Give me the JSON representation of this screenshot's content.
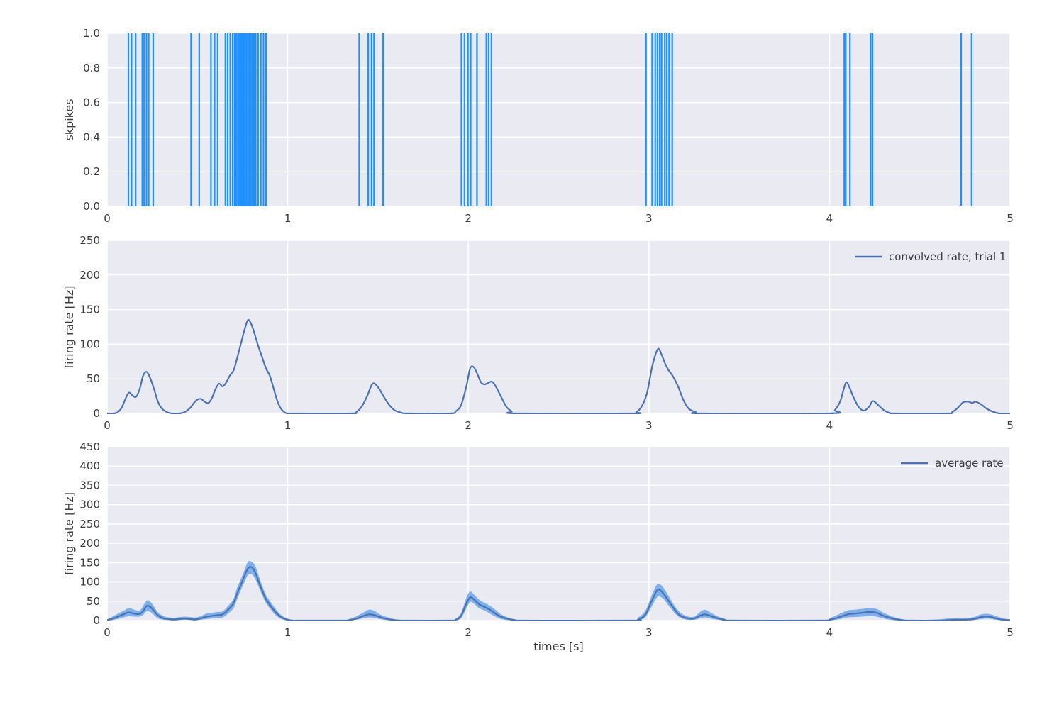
{
  "figure": {
    "background": "#ffffff",
    "axes_background": "#eaeaf2",
    "grid_color": "#ffffff",
    "text_color": "#3b3b3b",
    "xlabel": "times [s]"
  },
  "chart_data": [
    {
      "type": "eventplot",
      "name": "spike-raster",
      "ylabel": "skpikes",
      "xlim": [
        0,
        5
      ],
      "ylim": [
        0,
        1
      ],
      "grid": true,
      "xtick_values": [
        0,
        1,
        2,
        3,
        4,
        5
      ],
      "xtick_labels": [
        "0",
        "1",
        "2",
        "3",
        "4",
        "5"
      ],
      "ytick_values": [
        0,
        0.2,
        0.4,
        0.6,
        0.8,
        1.0
      ],
      "ytick_labels": [
        "0.0",
        "0.2",
        "0.4",
        "0.6",
        "0.8",
        "1.0"
      ],
      "spike_color": "#1e90ff",
      "spike_times": [
        0.118,
        0.135,
        0.158,
        0.195,
        0.205,
        0.218,
        0.23,
        0.255,
        0.465,
        0.51,
        0.575,
        0.595,
        0.612,
        0.655,
        0.668,
        0.682,
        0.695,
        0.706,
        0.715,
        0.724,
        0.732,
        0.74,
        0.748,
        0.756,
        0.763,
        0.771,
        0.779,
        0.787,
        0.795,
        0.804,
        0.813,
        0.823,
        0.836,
        0.851,
        0.866,
        0.88,
        1.396,
        1.446,
        1.464,
        1.478,
        1.528,
        1.962,
        1.979,
        1.998,
        2.013,
        2.048,
        2.1,
        2.113,
        2.128,
        2.984,
        3.018,
        3.035,
        3.048,
        3.06,
        3.07,
        3.088,
        3.099,
        3.112,
        3.129,
        4.082,
        4.09,
        4.113,
        4.228,
        4.238,
        4.729,
        4.787
      ]
    },
    {
      "type": "line",
      "name": "convolved-rate-trial-1",
      "ylabel": "firing rate [Hz]",
      "legend_label": "convolved rate, trial 1",
      "legend_position": "upper right",
      "line_color": "#4c72b0",
      "xlim": [
        0,
        5
      ],
      "ylim": [
        0,
        250
      ],
      "grid": true,
      "xtick_values": [
        0,
        1,
        2,
        3,
        4,
        5
      ],
      "xtick_labels": [
        "0",
        "1",
        "2",
        "3",
        "4",
        "5"
      ],
      "ytick_values": [
        0,
        50,
        100,
        150,
        200,
        250
      ],
      "ytick_labels": [
        "0",
        "50",
        "100",
        "150",
        "200",
        "250"
      ],
      "x": [
        0.0,
        0.04,
        0.06,
        0.08,
        0.1,
        0.12,
        0.14,
        0.16,
        0.18,
        0.2,
        0.22,
        0.24,
        0.26,
        0.28,
        0.3,
        0.33,
        0.36,
        0.4,
        0.43,
        0.46,
        0.48,
        0.5,
        0.52,
        0.54,
        0.56,
        0.58,
        0.6,
        0.62,
        0.64,
        0.66,
        0.68,
        0.7,
        0.72,
        0.74,
        0.76,
        0.78,
        0.8,
        0.82,
        0.84,
        0.86,
        0.88,
        0.9,
        0.92,
        0.94,
        0.96,
        0.98,
        1.0,
        1.05,
        1.35,
        1.38,
        1.41,
        1.44,
        1.47,
        1.5,
        1.53,
        1.56,
        1.59,
        1.63,
        1.67,
        1.9,
        1.93,
        1.96,
        1.99,
        2.01,
        2.03,
        2.05,
        2.07,
        2.09,
        2.11,
        2.13,
        2.15,
        2.18,
        2.21,
        2.24,
        2.27,
        2.9,
        2.93,
        2.96,
        2.99,
        3.02,
        3.05,
        3.07,
        3.09,
        3.11,
        3.13,
        3.16,
        3.19,
        3.22,
        3.26,
        3.3,
        4.0,
        4.03,
        4.06,
        4.09,
        4.11,
        4.13,
        4.16,
        4.19,
        4.22,
        4.24,
        4.27,
        4.3,
        4.33,
        4.37,
        4.65,
        4.68,
        4.71,
        4.74,
        4.77,
        4.79,
        4.81,
        4.84,
        4.87,
        4.9,
        4.94,
        5.0
      ],
      "y": [
        0,
        0,
        2,
        8,
        20,
        30,
        26,
        24,
        35,
        55,
        60,
        50,
        35,
        18,
        8,
        2,
        0,
        0,
        2,
        8,
        15,
        20,
        21,
        17,
        15,
        22,
        35,
        43,
        39,
        45,
        55,
        62,
        80,
        100,
        120,
        135,
        128,
        112,
        95,
        80,
        65,
        55,
        38,
        20,
        8,
        2,
        0,
        0,
        0,
        2,
        10,
        25,
        43,
        38,
        25,
        13,
        5,
        1,
        0,
        0,
        3,
        12,
        40,
        65,
        67,
        57,
        45,
        42,
        44,
        46,
        40,
        25,
        10,
        3,
        0,
        0,
        2,
        10,
        30,
        70,
        93,
        85,
        72,
        62,
        55,
        40,
        20,
        7,
        2,
        0,
        0,
        5,
        18,
        44,
        38,
        25,
        10,
        4,
        10,
        18,
        12,
        5,
        1,
        0,
        0,
        2,
        8,
        16,
        17,
        15,
        17,
        13,
        7,
        3,
        0,
        0
      ]
    },
    {
      "type": "area",
      "name": "average-rate",
      "ylabel": "firing rate [Hz]",
      "xlabel": "times [s]",
      "legend_label": "average rate",
      "legend_position": "upper right",
      "line_color": "#4c72b0",
      "band_color": "#7db0ec",
      "xlim": [
        0,
        5
      ],
      "ylim": [
        0,
        450
      ],
      "grid": true,
      "xtick_values": [
        0,
        1,
        2,
        3,
        4,
        5
      ],
      "xtick_labels": [
        "0",
        "1",
        "2",
        "3",
        "4",
        "5"
      ],
      "ytick_values": [
        0,
        50,
        100,
        150,
        200,
        250,
        300,
        350,
        400,
        450
      ],
      "ytick_labels": [
        "0",
        "50",
        "100",
        "150",
        "200",
        "250",
        "300",
        "350",
        "400",
        "450"
      ],
      "x": [
        0.0,
        0.03,
        0.06,
        0.09,
        0.12,
        0.15,
        0.18,
        0.2,
        0.22,
        0.24,
        0.26,
        0.28,
        0.31,
        0.34,
        0.37,
        0.4,
        0.43,
        0.46,
        0.49,
        0.52,
        0.55,
        0.58,
        0.61,
        0.64,
        0.67,
        0.7,
        0.72,
        0.74,
        0.76,
        0.78,
        0.8,
        0.82,
        0.84,
        0.86,
        0.88,
        0.91,
        0.94,
        0.97,
        1.0,
        1.03,
        1.06,
        1.3,
        1.34,
        1.38,
        1.42,
        1.45,
        1.48,
        1.51,
        1.55,
        1.59,
        1.63,
        1.67,
        1.9,
        1.93,
        1.96,
        1.99,
        2.01,
        2.03,
        2.06,
        2.09,
        2.12,
        2.15,
        2.18,
        2.22,
        2.26,
        2.3,
        2.9,
        2.94,
        2.98,
        3.02,
        3.05,
        3.08,
        3.11,
        3.14,
        3.17,
        3.21,
        3.25,
        3.28,
        3.31,
        3.34,
        3.38,
        3.42,
        3.46,
        3.95,
        4.0,
        4.05,
        4.1,
        4.14,
        4.18,
        4.22,
        4.26,
        4.3,
        4.35,
        4.4,
        4.45,
        4.6,
        4.65,
        4.7,
        4.75,
        4.8,
        4.84,
        4.88,
        4.92,
        4.96,
        5.0
      ],
      "mean": [
        1,
        5,
        10,
        16,
        21,
        18,
        17,
        25,
        38,
        35,
        25,
        14,
        6,
        4,
        3,
        4,
        5,
        4,
        3,
        6,
        10,
        12,
        14,
        16,
        28,
        45,
        70,
        92,
        115,
        135,
        138,
        125,
        100,
        76,
        55,
        35,
        18,
        7,
        2,
        0,
        0,
        0,
        1,
        5,
        12,
        16,
        14,
        9,
        4,
        1,
        0,
        0,
        0,
        2,
        12,
        45,
        60,
        55,
        42,
        35,
        28,
        18,
        10,
        4,
        1,
        0,
        0,
        3,
        15,
        55,
        80,
        70,
        50,
        30,
        14,
        6,
        5,
        12,
        16,
        12,
        6,
        2,
        0,
        0,
        2,
        8,
        16,
        18,
        20,
        22,
        20,
        12,
        5,
        1,
        0,
        0,
        1,
        2,
        2,
        4,
        9,
        10,
        6,
        2,
        1
      ],
      "ci_low": [
        0,
        1,
        4,
        8,
        11,
        10,
        10,
        15,
        24,
        22,
        14,
        6,
        2,
        1,
        0,
        1,
        2,
        1,
        0,
        2,
        4,
        5,
        7,
        8,
        18,
        32,
        55,
        78,
        99,
        118,
        120,
        108,
        86,
        64,
        45,
        26,
        11,
        3,
        0,
        0,
        0,
        0,
        0,
        2,
        6,
        8,
        7,
        4,
        1,
        0,
        0,
        0,
        0,
        0,
        6,
        32,
        48,
        44,
        32,
        26,
        18,
        10,
        4,
        1,
        0,
        0,
        0,
        1,
        8,
        40,
        62,
        56,
        38,
        21,
        8,
        2,
        2,
        5,
        8,
        5,
        2,
        0,
        0,
        0,
        0,
        3,
        8,
        9,
        10,
        12,
        10,
        5,
        1,
        0,
        0,
        0,
        0,
        0,
        0,
        1,
        4,
        5,
        2,
        0,
        0
      ],
      "ci_high": [
        3,
        10,
        18,
        25,
        32,
        28,
        26,
        38,
        52,
        48,
        36,
        22,
        12,
        8,
        7,
        9,
        10,
        9,
        8,
        12,
        18,
        20,
        22,
        24,
        38,
        56,
        85,
        107,
        130,
        152,
        152,
        142,
        115,
        89,
        66,
        45,
        26,
        12,
        5,
        1,
        0,
        1,
        4,
        11,
        21,
        28,
        25,
        16,
        9,
        4,
        1,
        0,
        1,
        5,
        20,
        60,
        75,
        68,
        54,
        46,
        38,
        28,
        16,
        8,
        3,
        1,
        1,
        8,
        25,
        70,
        95,
        85,
        63,
        40,
        22,
        11,
        10,
        21,
        28,
        21,
        11,
        5,
        2,
        2,
        6,
        16,
        26,
        28,
        30,
        32,
        30,
        20,
        10,
        4,
        1,
        3,
        5,
        6,
        6,
        9,
        16,
        17,
        12,
        6,
        3
      ]
    }
  ]
}
